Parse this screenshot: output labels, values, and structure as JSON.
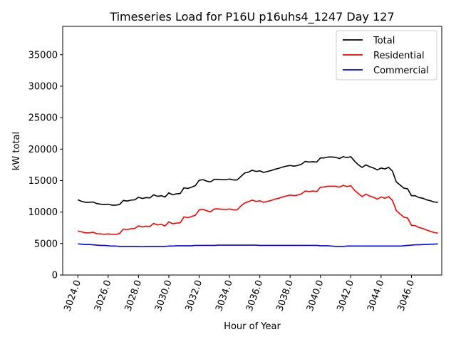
{
  "chart_data": {
    "type": "line",
    "title": "Timeseries Load for P16U p16uhs4_1247  Day 127",
    "xlabel": "Hour of Year",
    "ylabel": "kW total",
    "xlim": [
      3023.0,
      3048.0
    ],
    "ylim": [
      0,
      39500
    ],
    "xticks": [
      3024,
      3026,
      3028,
      3030,
      3032,
      3034,
      3036,
      3038,
      3040,
      3042,
      3044,
      3046
    ],
    "xtick_labels": [
      "3024.0",
      "3026.0",
      "3028.0",
      "3030.0",
      "3032.0",
      "3034.0",
      "3036.0",
      "3038.0",
      "3040.0",
      "3042.0",
      "3044.0",
      "3046.0"
    ],
    "yticks": [
      0,
      5000,
      10000,
      15000,
      20000,
      25000,
      30000,
      35000
    ],
    "ytick_labels": [
      "0",
      "5000",
      "10000",
      "15000",
      "20000",
      "25000",
      "30000",
      "35000"
    ],
    "legend_position": "top-right",
    "x": [
      3024.0,
      3024.25,
      3024.5,
      3024.75,
      3025.0,
      3025.25,
      3025.5,
      3025.75,
      3026.0,
      3026.25,
      3026.5,
      3026.75,
      3027.0,
      3027.25,
      3027.5,
      3027.75,
      3028.0,
      3028.25,
      3028.5,
      3028.75,
      3029.0,
      3029.25,
      3029.5,
      3029.75,
      3030.0,
      3030.25,
      3030.5,
      3030.75,
      3031.0,
      3031.25,
      3031.5,
      3031.75,
      3032.0,
      3032.25,
      3032.5,
      3032.75,
      3033.0,
      3033.25,
      3033.5,
      3033.75,
      3034.0,
      3034.25,
      3034.5,
      3034.75,
      3035.0,
      3035.25,
      3035.5,
      3035.75,
      3036.0,
      3036.25,
      3036.5,
      3036.75,
      3037.0,
      3037.25,
      3037.5,
      3037.75,
      3038.0,
      3038.25,
      3038.5,
      3038.75,
      3039.0,
      3039.25,
      3039.5,
      3039.75,
      3040.0,
      3040.25,
      3040.5,
      3040.75,
      3041.0,
      3041.25,
      3041.5,
      3041.75,
      3042.0,
      3042.25,
      3042.5,
      3042.75,
      3043.0,
      3043.25,
      3043.5,
      3043.75,
      3044.0,
      3044.25,
      3044.5,
      3044.75,
      3045.0,
      3045.25,
      3045.5,
      3045.75,
      3046.0,
      3046.25,
      3046.5,
      3046.75,
      3047.0,
      3047.25,
      3047.5,
      3047.75
    ],
    "series": [
      {
        "name": "Total",
        "color": "#000000",
        "values": [
          11950,
          11700,
          11550,
          11550,
          11600,
          11350,
          11250,
          11200,
          11250,
          11100,
          11100,
          11200,
          11850,
          11750,
          11900,
          11950,
          12350,
          12150,
          12300,
          12250,
          12750,
          12500,
          12600,
          12400,
          13050,
          12750,
          12900,
          12950,
          13850,
          13750,
          13950,
          14200,
          15050,
          15150,
          14900,
          14800,
          15200,
          15200,
          15150,
          15150,
          15250,
          15100,
          15100,
          15650,
          16200,
          16350,
          16650,
          16450,
          16550,
          16300,
          16450,
          16600,
          16800,
          16950,
          17150,
          17300,
          17400,
          17300,
          17400,
          17600,
          18050,
          17950,
          18000,
          17950,
          18600,
          18600,
          18750,
          18750,
          18700,
          18500,
          18800,
          18650,
          18800,
          18100,
          17500,
          17100,
          17500,
          17200,
          17000,
          16700,
          17000,
          16850,
          17100,
          16500,
          14800,
          14300,
          13800,
          13700,
          12600,
          12600,
          12300,
          12200,
          11950,
          11800,
          11600,
          11550
        ]
      },
      {
        "name": "Residential",
        "color": "#ff0000",
        "values": [
          7000,
          6850,
          6700,
          6700,
          6800,
          6550,
          6550,
          6450,
          6550,
          6450,
          6450,
          6600,
          7300,
          7200,
          7350,
          7400,
          7800,
          7650,
          7750,
          7700,
          8200,
          7950,
          8050,
          7800,
          8450,
          8150,
          8250,
          8300,
          9250,
          9100,
          9300,
          9500,
          10350,
          10450,
          10200,
          10050,
          10500,
          10500,
          10450,
          10400,
          10500,
          10350,
          10350,
          10950,
          11450,
          11650,
          11900,
          11700,
          11800,
          11550,
          11700,
          11850,
          12050,
          12200,
          12400,
          12550,
          12700,
          12600,
          12700,
          12900,
          13350,
          13250,
          13350,
          13250,
          13950,
          14000,
          14100,
          14100,
          14100,
          13950,
          14250,
          14050,
          14200,
          13450,
          12950,
          12450,
          12850,
          12550,
          12350,
          12050,
          12400,
          12200,
          12450,
          11850,
          10250,
          9700,
          9200,
          9050,
          7900,
          7850,
          7550,
          7400,
          7150,
          6950,
          6750,
          6650
        ]
      },
      {
        "name": "Commercial",
        "color": "#0000ff",
        "values": [
          4950,
          4900,
          4850,
          4850,
          4800,
          4750,
          4700,
          4700,
          4650,
          4600,
          4600,
          4550,
          4550,
          4550,
          4550,
          4550,
          4550,
          4500,
          4550,
          4550,
          4550,
          4550,
          4550,
          4550,
          4600,
          4600,
          4650,
          4650,
          4650,
          4650,
          4650,
          4700,
          4700,
          4700,
          4700,
          4700,
          4700,
          4750,
          4750,
          4750,
          4750,
          4750,
          4750,
          4750,
          4750,
          4750,
          4750,
          4750,
          4700,
          4700,
          4700,
          4700,
          4700,
          4700,
          4700,
          4700,
          4700,
          4700,
          4700,
          4700,
          4700,
          4700,
          4700,
          4700,
          4650,
          4650,
          4650,
          4600,
          4550,
          4550,
          4550,
          4600,
          4600,
          4600,
          4600,
          4600,
          4600,
          4600,
          4600,
          4600,
          4600,
          4600,
          4600,
          4600,
          4600,
          4600,
          4650,
          4700,
          4750,
          4800,
          4800,
          4850,
          4850,
          4900,
          4900,
          4950
        ]
      }
    ]
  }
}
